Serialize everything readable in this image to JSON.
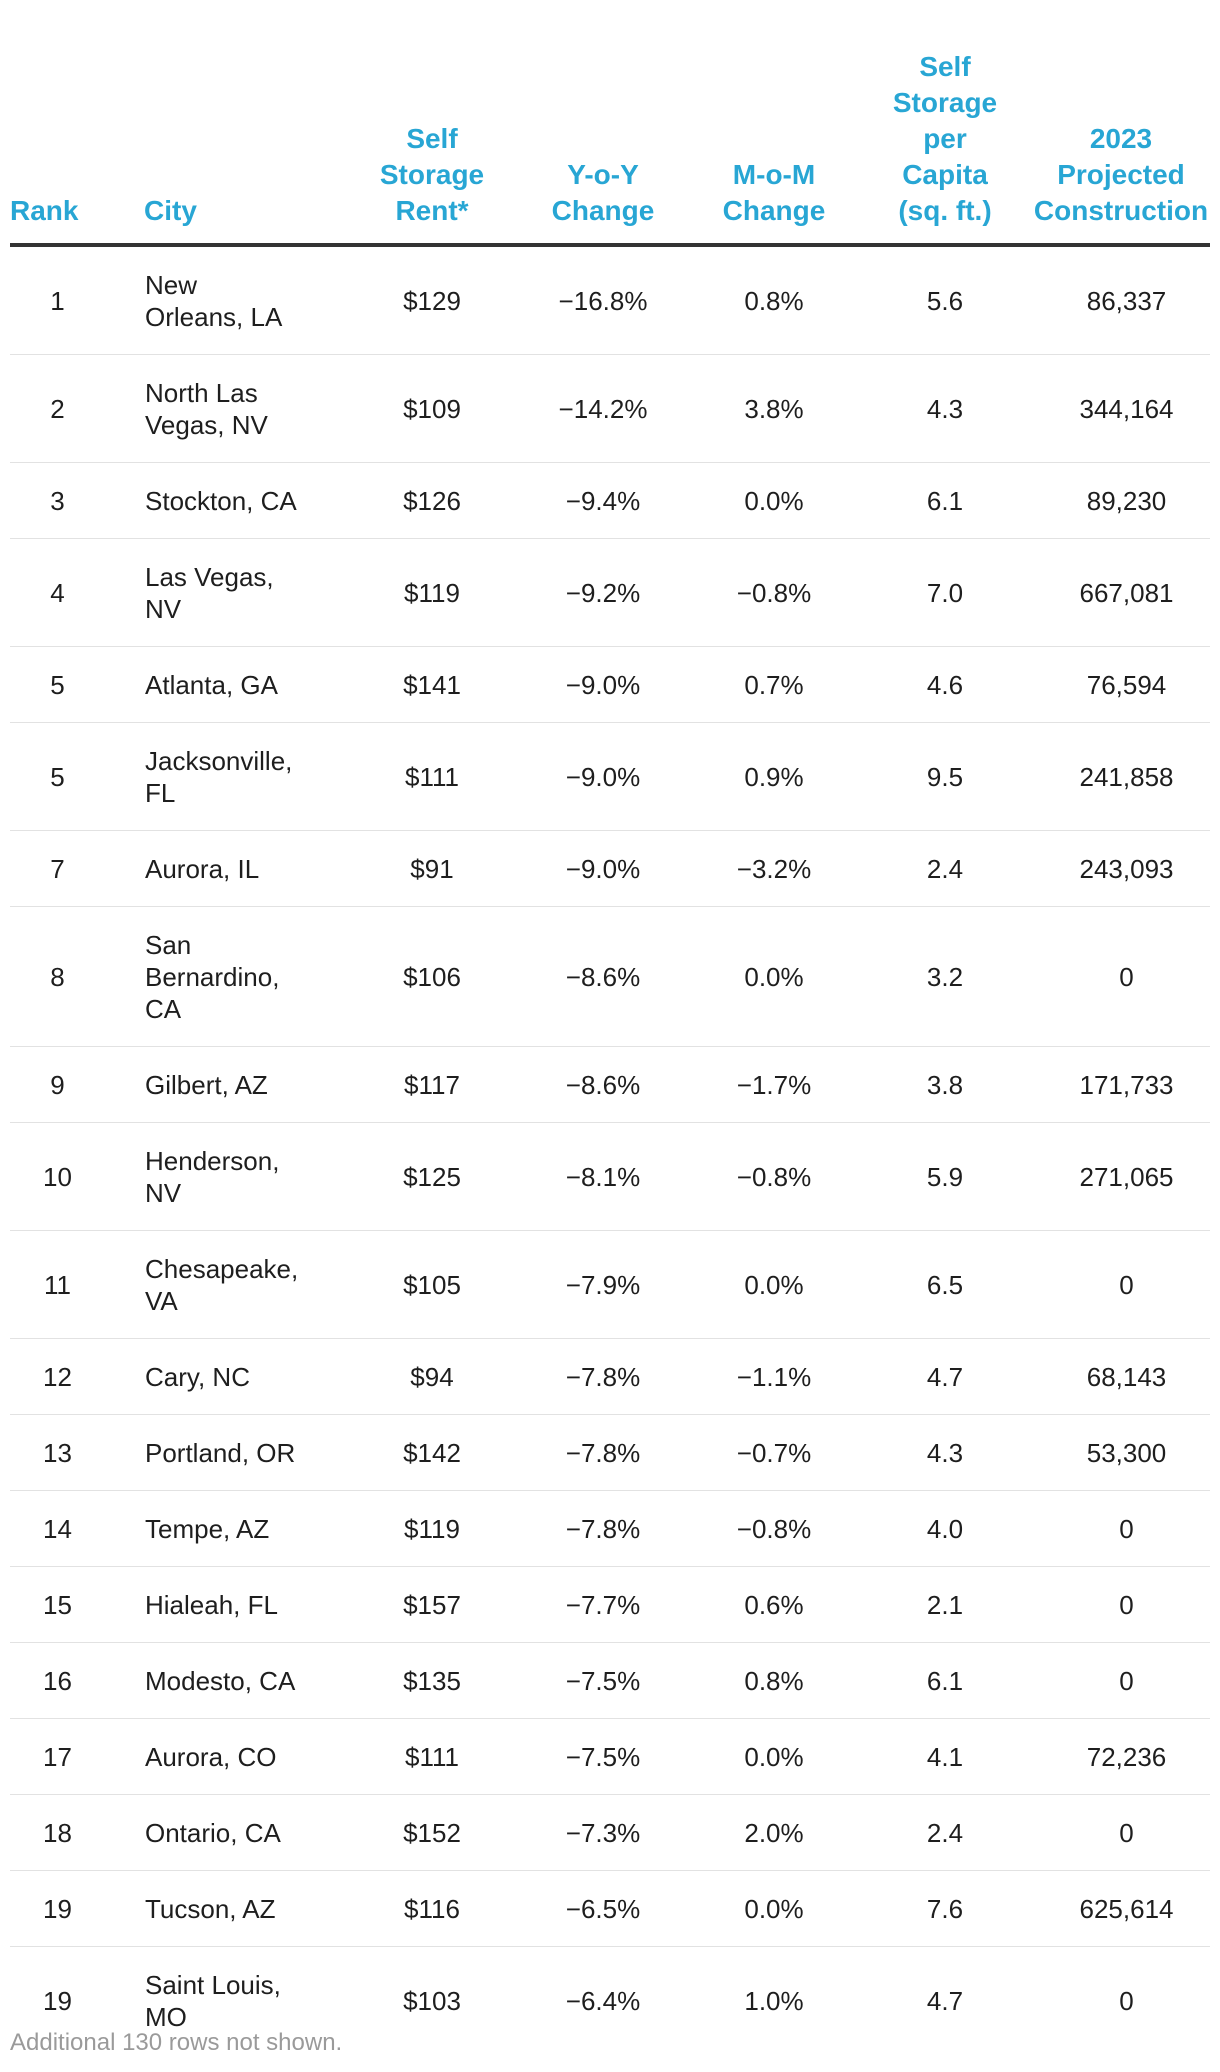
{
  "table": {
    "headers": {
      "rank": "Rank",
      "city": "City",
      "rent": [
        "Self",
        "Storage",
        "Rent*"
      ],
      "yoy": [
        "Y-o-Y",
        "Change"
      ],
      "mom": [
        "M-o-M",
        "Change"
      ],
      "capita": [
        "Self",
        "Storage",
        "per",
        "Capita",
        "(sq. ft.)"
      ],
      "construction": [
        "2023",
        "Projected",
        "Construction"
      ]
    },
    "rows": [
      {
        "rank": "1",
        "city": "New Orleans, LA",
        "city_lines": [
          "New",
          "Orleans, LA"
        ],
        "rent": "$129",
        "yoy": "−16.8%",
        "mom": "0.8%",
        "capita": "5.6",
        "construction": "86,337"
      },
      {
        "rank": "2",
        "city": "North Las Vegas, NV",
        "city_lines": [
          "North Las",
          "Vegas, NV"
        ],
        "rent": "$109",
        "yoy": "−14.2%",
        "mom": "3.8%",
        "capita": "4.3",
        "construction": "344,164"
      },
      {
        "rank": "3",
        "city": "Stockton, CA",
        "city_lines": [
          "Stockton, CA"
        ],
        "rent": "$126",
        "yoy": "−9.4%",
        "mom": "0.0%",
        "capita": "6.1",
        "construction": "89,230"
      },
      {
        "rank": "4",
        "city": "Las Vegas, NV",
        "city_lines": [
          "Las Vegas,",
          "NV"
        ],
        "rent": "$119",
        "yoy": "−9.2%",
        "mom": "−0.8%",
        "capita": "7.0",
        "construction": "667,081"
      },
      {
        "rank": "5",
        "city": "Atlanta, GA",
        "city_lines": [
          "Atlanta, GA"
        ],
        "rent": "$141",
        "yoy": "−9.0%",
        "mom": "0.7%",
        "capita": "4.6",
        "construction": "76,594"
      },
      {
        "rank": "5",
        "city": "Jacksonville, FL",
        "city_lines": [
          "Jacksonville,",
          "FL"
        ],
        "rent": "$111",
        "yoy": "−9.0%",
        "mom": "0.9%",
        "capita": "9.5",
        "construction": "241,858"
      },
      {
        "rank": "7",
        "city": "Aurora, IL",
        "city_lines": [
          "Aurora, IL"
        ],
        "rent": "$91",
        "yoy": "−9.0%",
        "mom": "−3.2%",
        "capita": "2.4",
        "construction": "243,093"
      },
      {
        "rank": "8",
        "city": "San Bernardino, CA",
        "city_lines": [
          "San",
          "Bernardino,",
          "CA"
        ],
        "rent": "$106",
        "yoy": "−8.6%",
        "mom": "0.0%",
        "capita": "3.2",
        "construction": "0"
      },
      {
        "rank": "9",
        "city": "Gilbert, AZ",
        "city_lines": [
          "Gilbert, AZ"
        ],
        "rent": "$117",
        "yoy": "−8.6%",
        "mom": "−1.7%",
        "capita": "3.8",
        "construction": "171,733"
      },
      {
        "rank": "10",
        "city": "Henderson, NV",
        "city_lines": [
          "Henderson,",
          "NV"
        ],
        "rent": "$125",
        "yoy": "−8.1%",
        "mom": "−0.8%",
        "capita": "5.9",
        "construction": "271,065"
      },
      {
        "rank": "11",
        "city": "Chesapeake, VA",
        "city_lines": [
          "Chesapeake,",
          "VA"
        ],
        "rent": "$105",
        "yoy": "−7.9%",
        "mom": "0.0%",
        "capita": "6.5",
        "construction": "0"
      },
      {
        "rank": "12",
        "city": "Cary, NC",
        "city_lines": [
          "Cary, NC"
        ],
        "rent": "$94",
        "yoy": "−7.8%",
        "mom": "−1.1%",
        "capita": "4.7",
        "construction": "68,143"
      },
      {
        "rank": "13",
        "city": "Portland, OR",
        "city_lines": [
          "Portland, OR"
        ],
        "rent": "$142",
        "yoy": "−7.8%",
        "mom": "−0.7%",
        "capita": "4.3",
        "construction": "53,300"
      },
      {
        "rank": "14",
        "city": "Tempe, AZ",
        "city_lines": [
          "Tempe, AZ"
        ],
        "rent": "$119",
        "yoy": "−7.8%",
        "mom": "−0.8%",
        "capita": "4.0",
        "construction": "0"
      },
      {
        "rank": "15",
        "city": "Hialeah, FL",
        "city_lines": [
          "Hialeah, FL"
        ],
        "rent": "$157",
        "yoy": "−7.7%",
        "mom": "0.6%",
        "capita": "2.1",
        "construction": "0"
      },
      {
        "rank": "16",
        "city": "Modesto, CA",
        "city_lines": [
          "Modesto, CA"
        ],
        "rent": "$135",
        "yoy": "−7.5%",
        "mom": "0.8%",
        "capita": "6.1",
        "construction": "0"
      },
      {
        "rank": "17",
        "city": "Aurora, CO",
        "city_lines": [
          "Aurora, CO"
        ],
        "rent": "$111",
        "yoy": "−7.5%",
        "mom": "0.0%",
        "capita": "4.1",
        "construction": "72,236"
      },
      {
        "rank": "18",
        "city": "Ontario, CA",
        "city_lines": [
          "Ontario, CA"
        ],
        "rent": "$152",
        "yoy": "−7.3%",
        "mom": "2.0%",
        "capita": "2.4",
        "construction": "0"
      },
      {
        "rank": "19",
        "city": "Tucson, AZ",
        "city_lines": [
          "Tucson, AZ"
        ],
        "rent": "$116",
        "yoy": "−6.5%",
        "mom": "0.0%",
        "capita": "7.6",
        "construction": "625,614"
      },
      {
        "rank": "19",
        "city": "Saint Louis, MO",
        "city_lines": [
          "Saint Louis,",
          "MO"
        ],
        "rent": "$103",
        "yoy": "−6.4%",
        "mom": "1.0%",
        "capita": "4.7",
        "construction": "0"
      }
    ]
  },
  "footnote": "Additional 130 rows not shown.",
  "colors": {
    "header_text": "#28a6d4",
    "body_text": "#1e1e1e",
    "header_rule": "#333333",
    "row_rule": "#e2e2e2",
    "footnote_text": "#9a9a9a"
  }
}
